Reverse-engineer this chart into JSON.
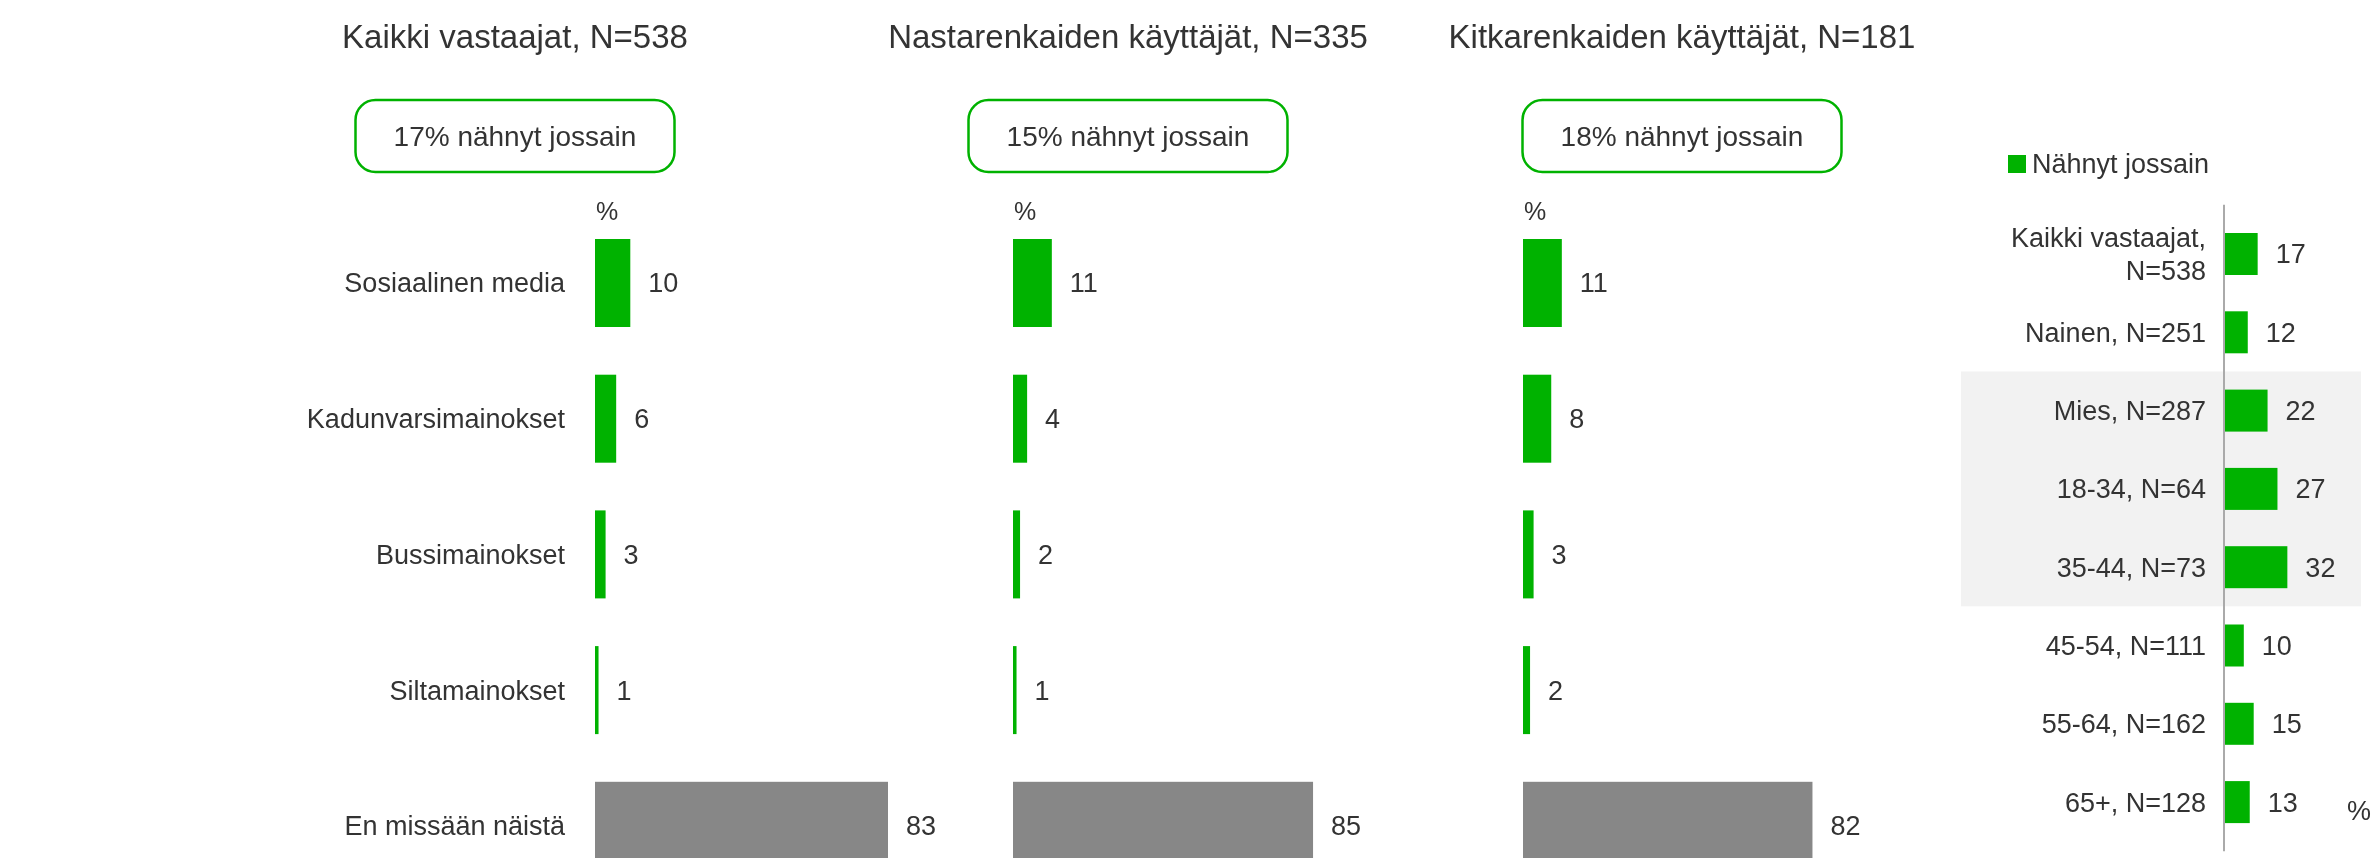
{
  "chart_data": [
    {
      "type": "bar",
      "orientation": "horizontal",
      "title": "Kaikki vastaajat, N=538",
      "xlabel": "%",
      "annotations": [
        "17% nähnyt jossain"
      ],
      "categories": [
        "Sosiaalinen media",
        "Kadunvarsimainokset",
        "Bussimainokset",
        "Siltamainokset",
        "En missään näistä"
      ],
      "values": [
        10,
        6,
        3,
        1,
        83
      ],
      "colors": [
        "#00b200",
        "#00b200",
        "#00b200",
        "#00b200",
        "#878787"
      ],
      "data_labels": true,
      "legend": false
    },
    {
      "type": "bar",
      "orientation": "horizontal",
      "title": "Nastarenkaiden käyttäjät, N=335",
      "xlabel": "%",
      "annotations": [
        "15% nähnyt jossain"
      ],
      "categories": [
        null,
        null,
        null,
        null,
        null
      ],
      "values": [
        11,
        4,
        2,
        1,
        85
      ],
      "colors": [
        "#00b200",
        "#00b200",
        "#00b200",
        "#00b200",
        "#878787"
      ],
      "data_labels": true,
      "legend": false
    },
    {
      "type": "bar",
      "orientation": "horizontal",
      "title": "Kitkarenkaiden käyttäjät, N=181",
      "xlabel": "%",
      "annotations": [
        "18% nähnyt jossain"
      ],
      "categories": [
        null,
        null,
        null,
        null,
        null
      ],
      "values": [
        11,
        8,
        3,
        2,
        82
      ],
      "colors": [
        "#00b200",
        "#00b200",
        "#00b200",
        "#00b200",
        "#878787"
      ],
      "data_labels": true,
      "legend": false
    },
    {
      "type": "bar",
      "orientation": "horizontal",
      "xlabel": "%",
      "categories": [
        "Kaikki vastaajat, N=538",
        "Nainen, N=251",
        "Mies, N=287",
        "18-34, N=64",
        "35-44, N=73",
        "45-54, N=111",
        "55-64, N=162",
        "65+, N=128"
      ],
      "series": [
        {
          "name": "Nähnyt jossain",
          "color": "#00b200",
          "values": [
            17,
            12,
            22,
            27,
            32,
            10,
            15,
            13
          ]
        }
      ],
      "bands": [
        {
          "axis": "y",
          "from": "Mies, N=287",
          "to": "35-44, N=73",
          "color": "#f2f2f2"
        }
      ],
      "data_labels": true,
      "legend": "top"
    }
  ]
}
